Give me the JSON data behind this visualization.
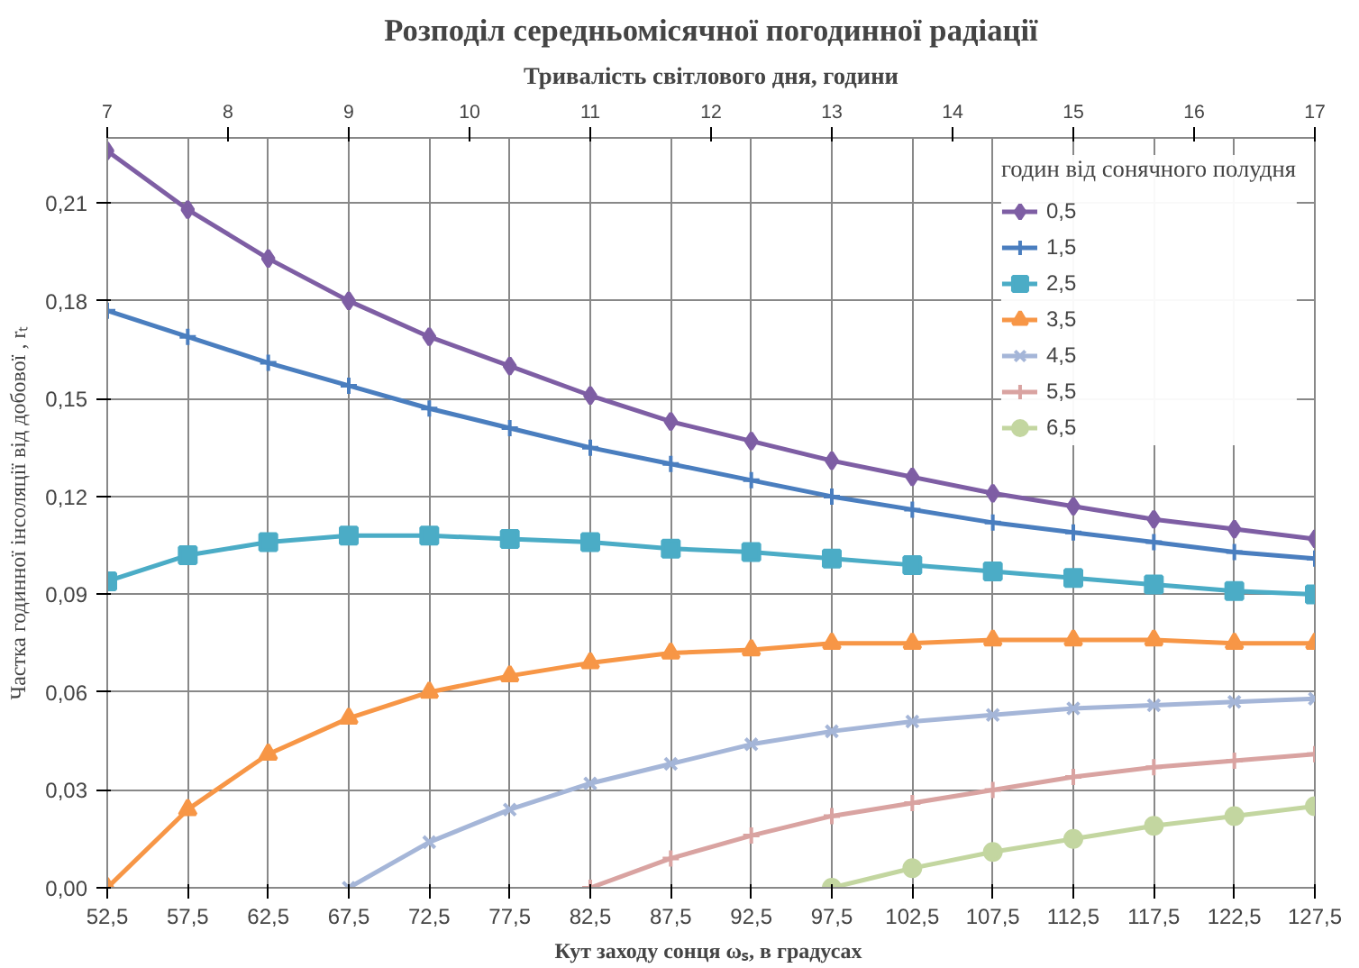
{
  "chart_data": {
    "type": "line",
    "title": "Розподіл середньомісячної погодинної радіації",
    "xlabel": "Кут заходу сонця ωₛ,  в градусах",
    "x2label": "Тривалість світлового дня, години",
    "ylabel": "Частка годинної інсоляції від добової , rₜ",
    "legend_title": "годин від сонячного полудня",
    "x": [
      52.5,
      57.5,
      62.5,
      67.5,
      72.5,
      77.5,
      82.5,
      87.5,
      92.5,
      97.5,
      102.5,
      107.5,
      112.5,
      117.5,
      122.5,
      127.5
    ],
    "xlim": [
      52.5,
      127.5
    ],
    "xticks": [
      {
        "value": 52.5,
        "label": "52,5"
      },
      {
        "value": 57.5,
        "label": "57,5"
      },
      {
        "value": 62.5,
        "label": "62,5"
      },
      {
        "value": 67.5,
        "label": "67,5"
      },
      {
        "value": 72.5,
        "label": "72,5"
      },
      {
        "value": 77.5,
        "label": "77,5"
      },
      {
        "value": 82.5,
        "label": "82,5"
      },
      {
        "value": 87.5,
        "label": "87,5"
      },
      {
        "value": 92.5,
        "label": "92,5"
      },
      {
        "value": 97.5,
        "label": "97,5"
      },
      {
        "value": 102.5,
        "label": "102,5"
      },
      {
        "value": 107.5,
        "label": "107,5"
      },
      {
        "value": 112.5,
        "label": "112,5"
      },
      {
        "value": 117.5,
        "label": "117,5"
      },
      {
        "value": 122.5,
        "label": "122,5"
      },
      {
        "value": 127.5,
        "label": "127,5"
      }
    ],
    "x2lim": [
      7,
      17
    ],
    "x2ticks": [
      7,
      8,
      9,
      10,
      11,
      12,
      13,
      14,
      15,
      16,
      17
    ],
    "ylim": [
      0,
      0.23
    ],
    "yticks": [
      {
        "value": 0,
        "label": "0,00"
      },
      {
        "value": 0.03,
        "label": "0,03"
      },
      {
        "value": 0.06,
        "label": "0,06"
      },
      {
        "value": 0.09,
        "label": "0,09"
      },
      {
        "value": 0.12,
        "label": "0,12"
      },
      {
        "value": 0.15,
        "label": "0,15"
      },
      {
        "value": 0.18,
        "label": "0,18"
      },
      {
        "value": 0.21,
        "label": "0,21"
      }
    ],
    "grid": true,
    "legend": "top right",
    "line_style": "solid",
    "series": [
      {
        "name": "0,5",
        "color": "#7e5ea4",
        "marker": "diamond",
        "values": [
          0.226,
          0.208,
          0.193,
          0.18,
          0.169,
          0.16,
          0.151,
          0.143,
          0.137,
          0.131,
          0.126,
          0.121,
          0.117,
          0.113,
          0.11,
          0.107
        ]
      },
      {
        "name": "1,5",
        "color": "#4a7ebf",
        "marker": "cross",
        "values": [
          0.177,
          0.169,
          0.161,
          0.154,
          0.147,
          0.141,
          0.135,
          0.13,
          0.125,
          0.12,
          0.116,
          0.112,
          0.109,
          0.106,
          0.103,
          0.101
        ]
      },
      {
        "name": "2,5",
        "color": "#4bacc6",
        "marker": "square",
        "values": [
          0.094,
          0.102,
          0.106,
          0.108,
          0.108,
          0.107,
          0.106,
          0.104,
          0.103,
          0.101,
          0.099,
          0.097,
          0.095,
          0.093,
          0.091,
          0.09
        ]
      },
      {
        "name": "3,5",
        "color": "#f79646",
        "marker": "triangle",
        "values": [
          0.0,
          0.024,
          0.041,
          0.052,
          0.06,
          0.065,
          0.069,
          0.072,
          0.073,
          0.075,
          0.075,
          0.076,
          0.076,
          0.076,
          0.075,
          0.075
        ]
      },
      {
        "name": "4,5",
        "color": "#a5b6d8",
        "marker": "x",
        "values": [
          null,
          null,
          null,
          0.0,
          0.014,
          0.024,
          0.032,
          0.038,
          0.044,
          0.048,
          0.051,
          0.053,
          0.055,
          0.056,
          0.057,
          0.058
        ]
      },
      {
        "name": "5,5",
        "color": "#d9a3a1",
        "marker": "cross",
        "values": [
          null,
          null,
          null,
          null,
          null,
          null,
          0.0,
          0.009,
          0.016,
          0.022,
          0.026,
          0.03,
          0.034,
          0.037,
          0.039,
          0.041
        ]
      },
      {
        "name": "6,5",
        "color": "#c3d6a0",
        "marker": "circle",
        "values": [
          null,
          null,
          null,
          null,
          null,
          null,
          null,
          null,
          null,
          0.0,
          0.006,
          0.011,
          0.015,
          0.019,
          0.022,
          0.025
        ]
      }
    ]
  }
}
